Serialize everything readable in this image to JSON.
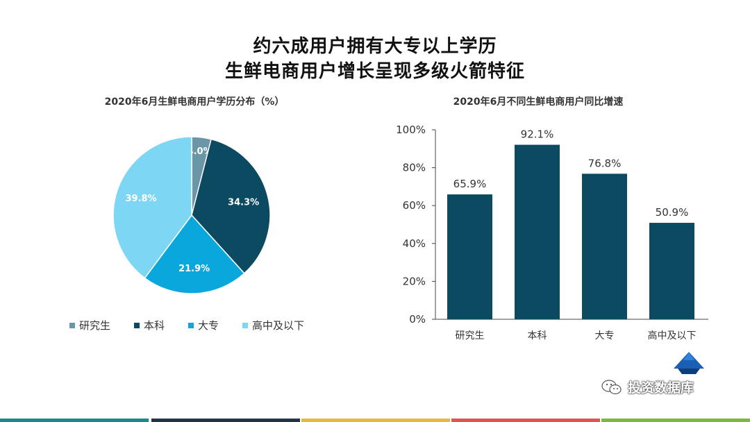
{
  "titles": {
    "line1": "约六成用户拥有大专以上学历",
    "line2": "生鲜电商用户增长呈现多级火箭特征"
  },
  "chart_data": [
    {
      "type": "pie",
      "title": "2020年6月生鲜电商用户学历分布（%）",
      "categories": [
        "研究生",
        "本科",
        "大专",
        "高中及以下"
      ],
      "values": [
        4.0,
        34.3,
        21.9,
        39.8
      ],
      "labels": [
        "4.0%",
        "34.3%",
        "21.9%",
        "39.8%"
      ],
      "colors": [
        "#6a96a8",
        "#0b4a60",
        "#0aa7dc",
        "#7dd6f4"
      ],
      "legend": "bottom"
    },
    {
      "type": "bar",
      "title": "2020年6月不同生鲜电商用户同比增速",
      "categories": [
        "研究生",
        "本科",
        "大专",
        "高中及以下"
      ],
      "values": [
        65.9,
        92.1,
        76.8,
        50.9
      ],
      "labels": [
        "65.9%",
        "92.1%",
        "76.8%",
        "50.9%"
      ],
      "ylim": [
        0,
        100
      ],
      "yticks": [
        "0%",
        "20%",
        "40%",
        "60%",
        "80%",
        "100%"
      ],
      "color": "#0b4a60",
      "grid": false
    }
  ],
  "watermark": {
    "text": "投资数据库"
  },
  "footer_colors": [
    "#1a8a8a",
    "#243447",
    "#e9b73a",
    "#e0564a",
    "#7cba3e"
  ]
}
